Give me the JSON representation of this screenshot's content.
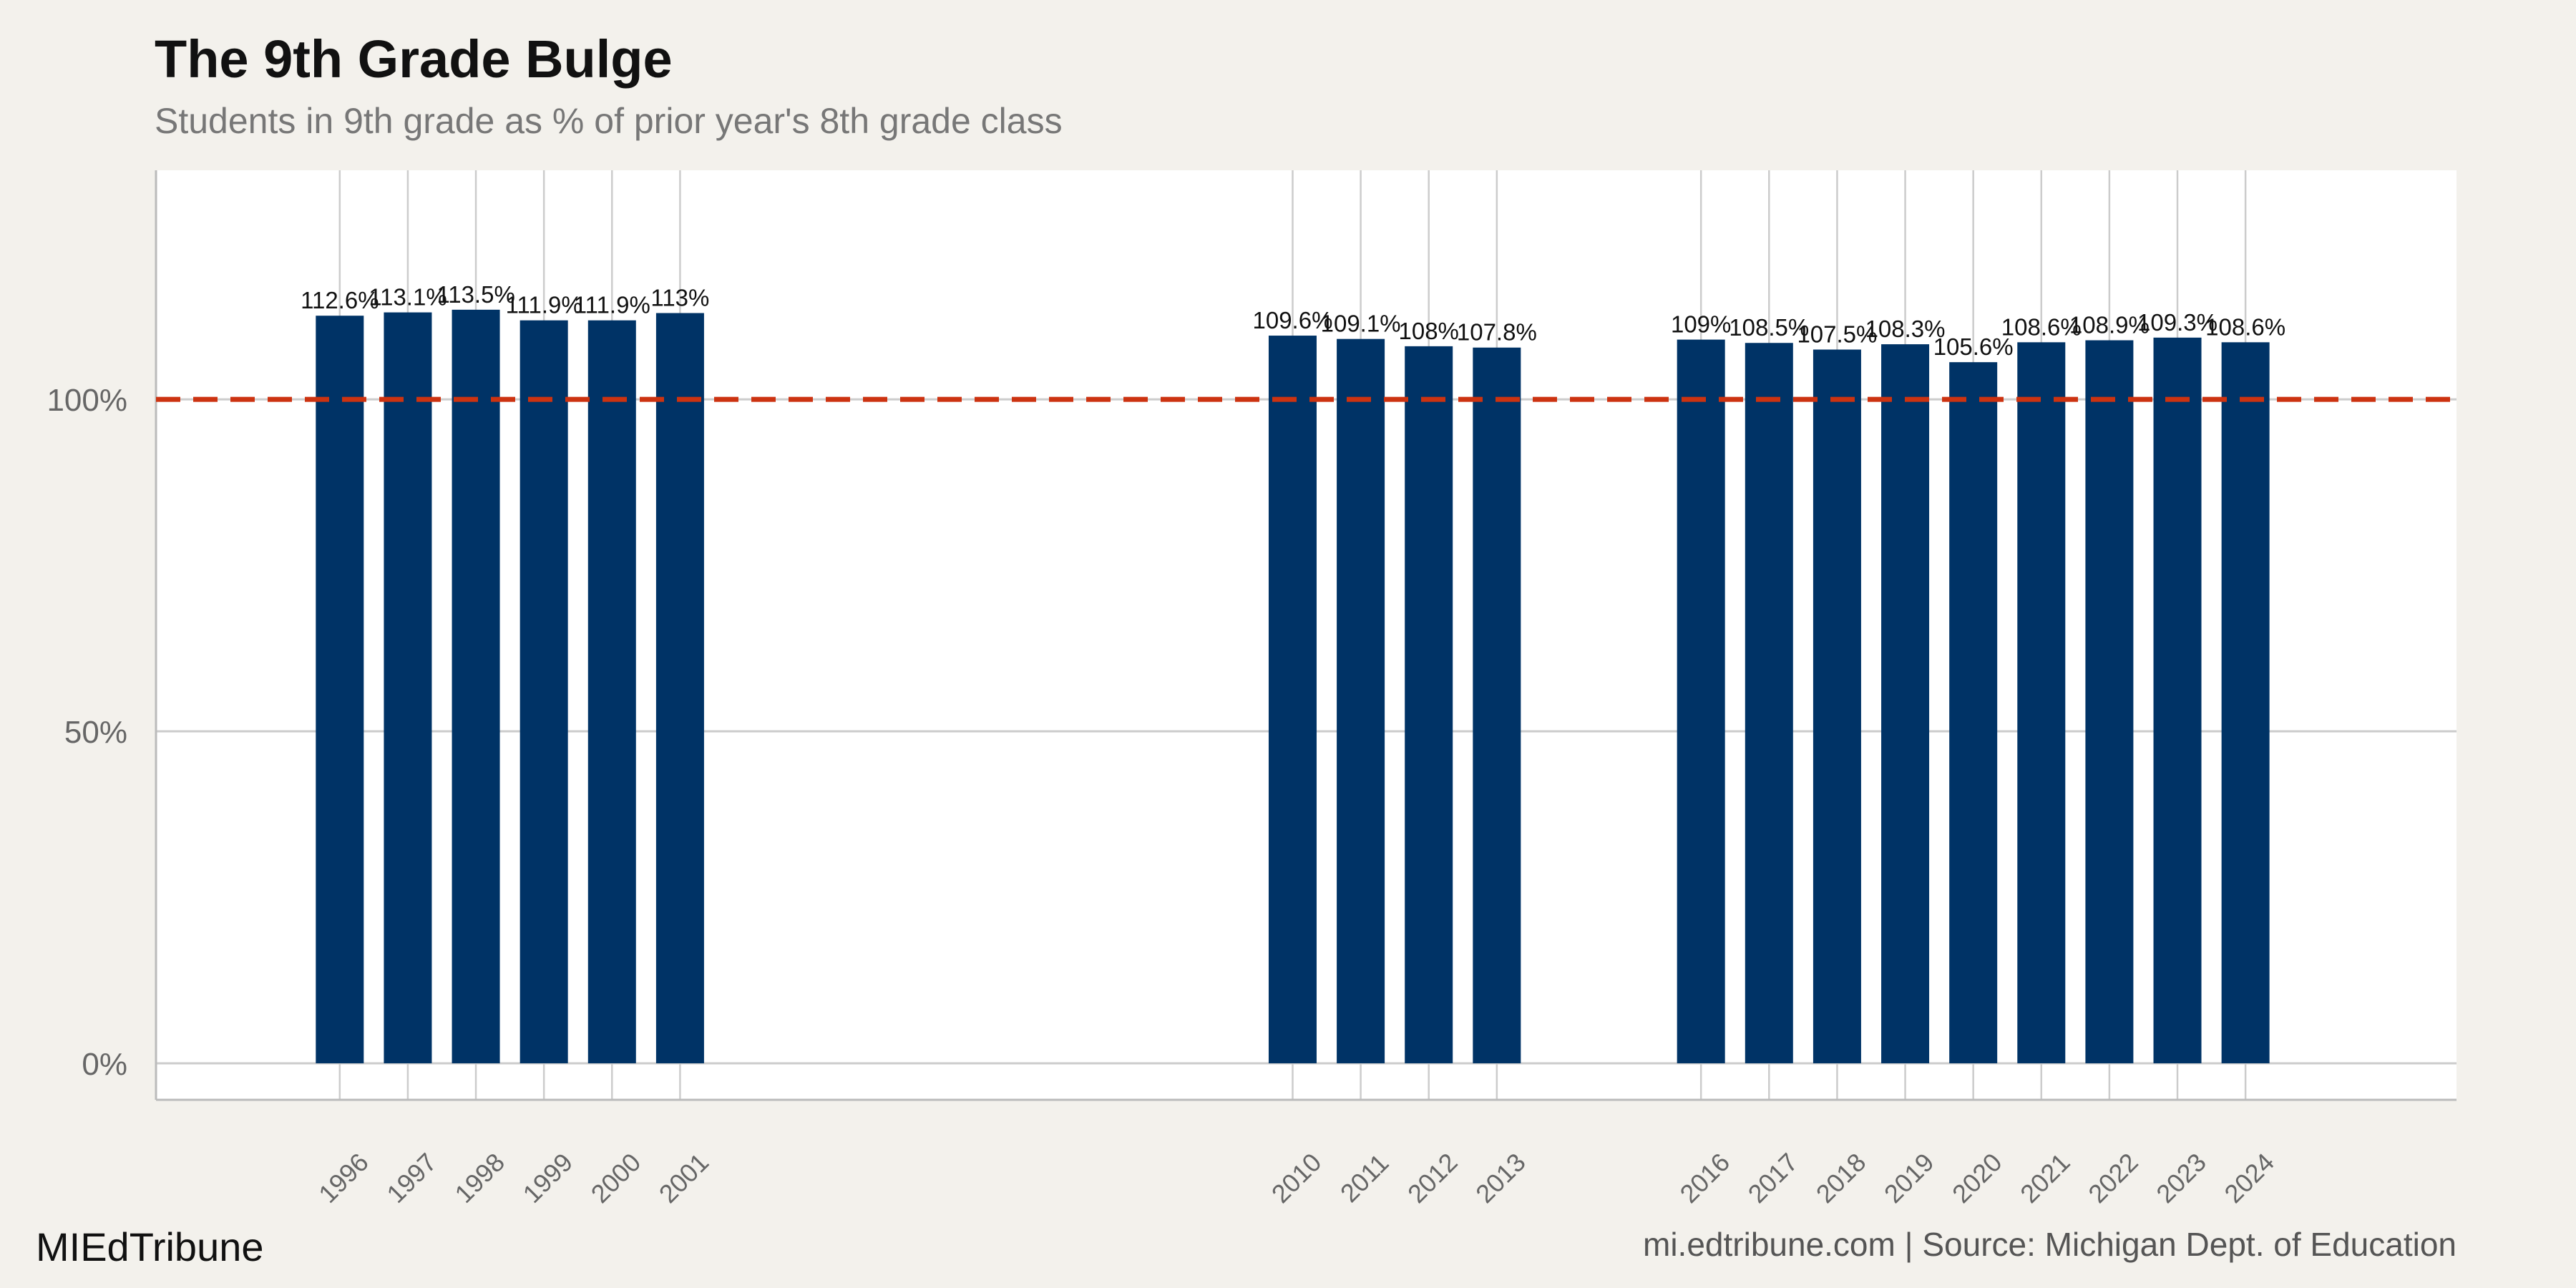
{
  "title": "The 9th Grade Bulge",
  "subtitle": "Students in 9th grade as % of prior year's 8th grade class",
  "footer": {
    "brand": "MIEdTribune",
    "source": "mi.edtribune.com | Source: Michigan Dept. of Education"
  },
  "colors": {
    "bar": "#003366",
    "reference_line": "#cc3311",
    "grid": "#cccccc",
    "panel": "#ffffff",
    "background": "#f3f1ec"
  },
  "chart_data": {
    "type": "bar",
    "title": "The 9th Grade Bulge",
    "subtitle": "Students in 9th grade as % of prior year's 8th grade class",
    "xlabel": "",
    "ylabel": "",
    "x_type": "year",
    "xlim": [
      1993.3,
      2027.1
    ],
    "ylim": [
      -5.5,
      134.5
    ],
    "grid": true,
    "categories": [
      "1996",
      "1997",
      "1998",
      "1999",
      "2000",
      "2001",
      "2010",
      "2011",
      "2012",
      "2013",
      "2016",
      "2017",
      "2018",
      "2019",
      "2020",
      "2021",
      "2022",
      "2023",
      "2024"
    ],
    "values": [
      112.6,
      113.1,
      113.5,
      111.9,
      111.9,
      113.0,
      109.6,
      109.1,
      108.0,
      107.8,
      109.0,
      108.5,
      107.5,
      108.3,
      105.6,
      108.6,
      108.9,
      109.3,
      108.6
    ],
    "data_labels": [
      "112.6%",
      "113.1%",
      "113.5%",
      "111.9%",
      "111.9%",
      "113%",
      "109.6%",
      "109.1%",
      "108%",
      "107.8%",
      "109%",
      "108.5%",
      "107.5%",
      "108.3%",
      "105.6%",
      "108.6%",
      "108.9%",
      "109.3%",
      "108.6%"
    ],
    "y_ticks": [
      0,
      50,
      100
    ],
    "y_tick_labels": [
      "0%",
      "50%",
      "100%"
    ],
    "reference_line": {
      "value": 100,
      "style": "dashed"
    }
  }
}
